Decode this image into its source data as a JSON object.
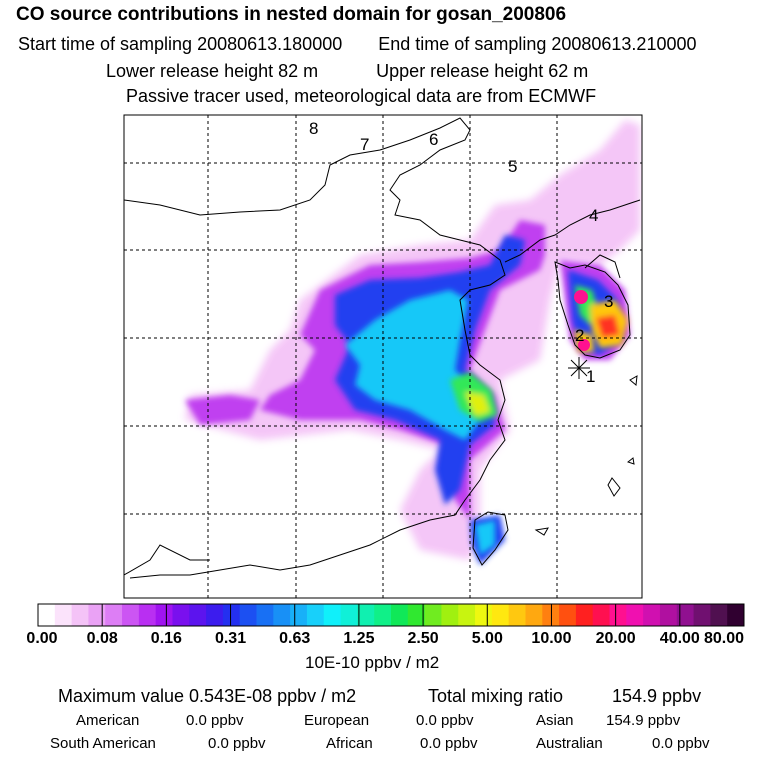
{
  "header": {
    "title": "CO  source contributions in nested domain for gosan_200806",
    "start_label": "Start time of sampling 20080613.180000",
    "end_label": "End time of sampling 20080613.210000",
    "lower_release": "Lower release height   82 m",
    "upper_release": "Upper release height   62 m",
    "tracer_note": "Passive tracer used, meteorological data are from ECMWF"
  },
  "map": {
    "trajectory_points": [
      {
        "label": "1"
      },
      {
        "label": "2"
      },
      {
        "label": "3"
      },
      {
        "label": "4"
      },
      {
        "label": "5"
      },
      {
        "label": "6"
      },
      {
        "label": "7"
      },
      {
        "label": "8"
      }
    ],
    "receptor_icon": "asterisk-receptor-icon"
  },
  "colorbar": {
    "labels": [
      "0.00",
      "0.08",
      "0.16",
      "0.31",
      "0.63",
      "1.25",
      "2.50",
      "5.00",
      "10.00",
      "20.00",
      "40.00",
      "80.00"
    ],
    "colors": [
      "#ffffff",
      "#fbe3fb",
      "#f4c3f7",
      "#eaa2f5",
      "#dd7ef5",
      "#cc55f3",
      "#b92ff2",
      "#a014f0",
      "#7a10ee",
      "#5c14ee",
      "#3c1cee",
      "#2430f0",
      "#1c50f2",
      "#1870f4",
      "#1890f6",
      "#18b0f8",
      "#18d0fa",
      "#10f0fa",
      "#10f0d8",
      "#10f0b0",
      "#10f088",
      "#10e858",
      "#30e830",
      "#70ec20",
      "#a0f010",
      "#c8f410",
      "#eef810",
      "#ffe810",
      "#ffc810",
      "#ffa810",
      "#ff8010",
      "#ff5010",
      "#ff2020",
      "#ff1050",
      "#ff1090",
      "#f010b0",
      "#d010b0",
      "#b010a0",
      "#901090",
      "#701070",
      "#501050",
      "#300030"
    ],
    "unit": "10E-10 ppbv / m2"
  },
  "stats": {
    "max_label": "Maximum value  0.543E-08 ppbv / m2",
    "total_label": "Total mixing ratio",
    "total_value": "154.9 ppbv",
    "regions": [
      {
        "name": "American",
        "value": "0.0 ppbv"
      },
      {
        "name": "European",
        "value": "0.0 ppbv"
      },
      {
        "name": "Asian",
        "value": "154.9 ppbv"
      },
      {
        "name": "South American",
        "value": "0.0 ppbv"
      },
      {
        "name": "African",
        "value": "0.0 ppbv"
      },
      {
        "name": "Australian",
        "value": "0.0 ppbv"
      }
    ]
  }
}
